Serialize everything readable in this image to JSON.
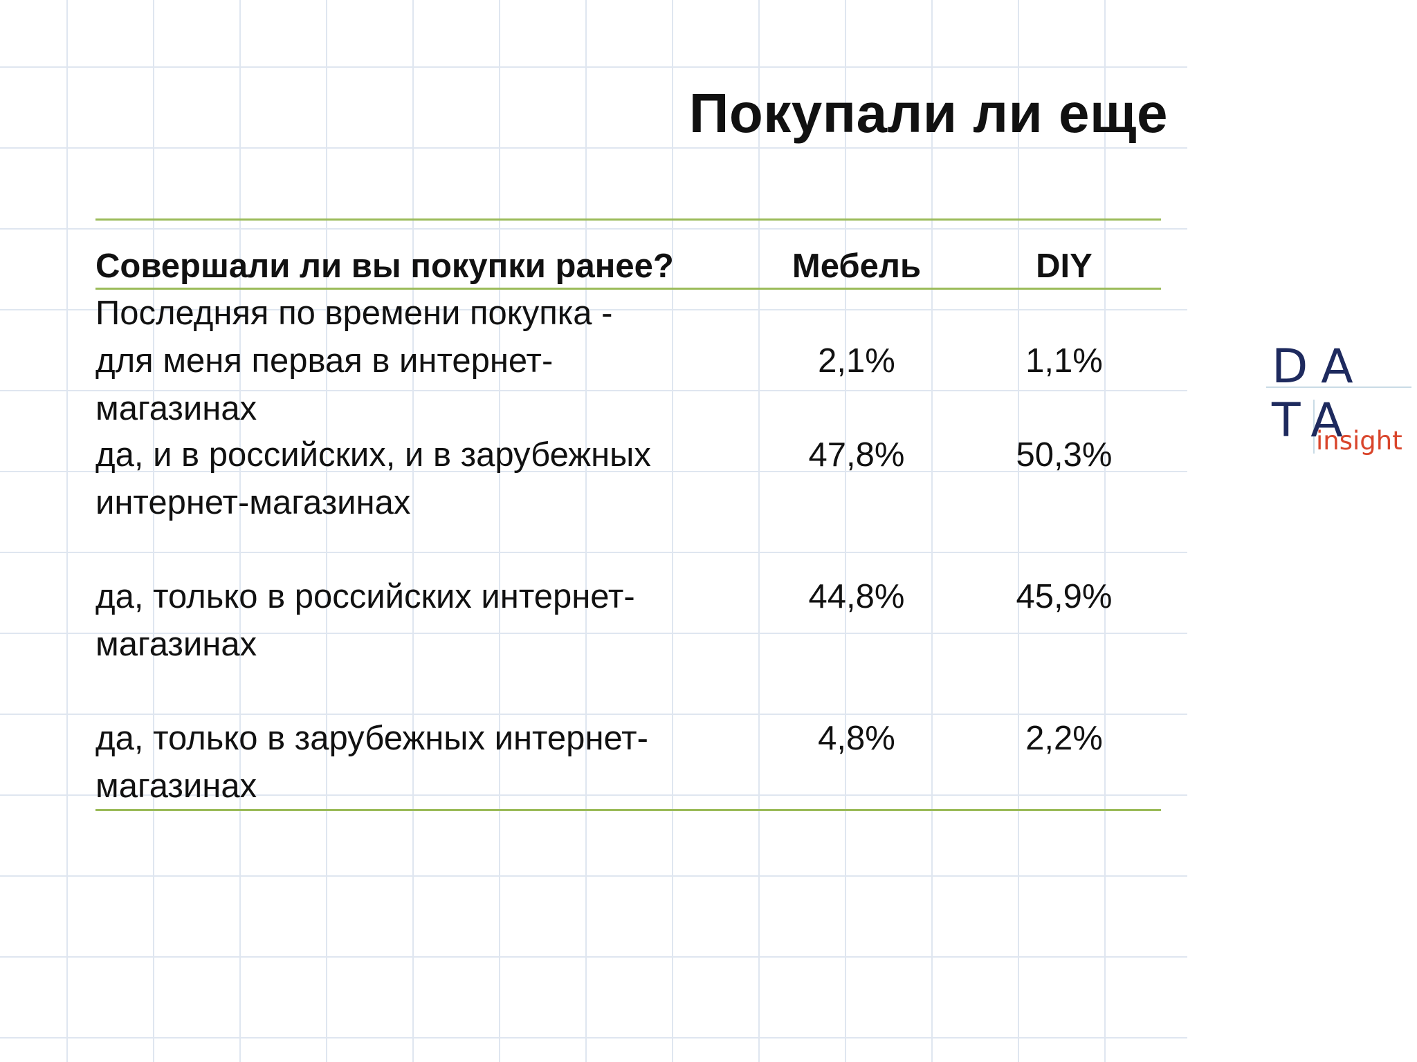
{
  "title": "Покупали ли еще",
  "table": {
    "headers": [
      "Совершали ли вы покупки ранее?",
      "Мебель",
      "DIY"
    ],
    "rows": [
      {
        "label_lines": [
          "Последняя по времени покупка -",
          "для меня первая в интернет-",
          "магазинах"
        ],
        "mebel": "2,1%",
        "diy": "1,1%"
      },
      {
        "label_lines": [
          "да, и в российских, и в зарубежных",
          "интернет-магазинах"
        ],
        "mebel": "47,8%",
        "diy": "50,3%"
      },
      {
        "label_lines": [
          "да, только в российских интернет-",
          "магазинах"
        ],
        "mebel": "44,8%",
        "diy": "45,9%"
      },
      {
        "label_lines": [
          "да, только в зарубежных интернет-",
          "магазинах"
        ],
        "mebel": "4,8%",
        "diy": "2,2%"
      }
    ]
  },
  "logo": {
    "letters_top": "DA",
    "letters_bottom": "TA",
    "tagline": "insight"
  },
  "colors": {
    "rule": "#9bbb59",
    "logo_letters": "#1e2a5e",
    "logo_tagline": "#d9452b"
  }
}
